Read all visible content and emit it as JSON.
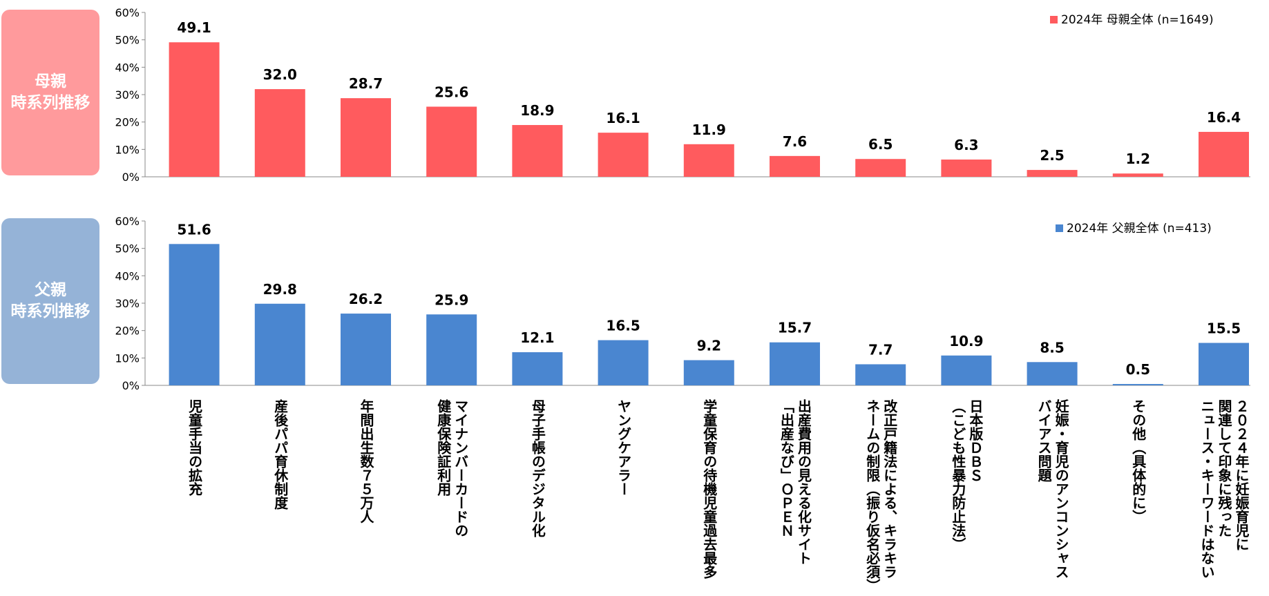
{
  "chart_data": [
    {
      "type": "bar",
      "panel_label": [
        "母親",
        "時系列推移"
      ],
      "categories": [
        "児童手当の拡充",
        "産後パパ育休制度",
        "年間出生数７５万人",
        "マイナンバーカードの\n健康保険証利用",
        "母子手帳のデジタル化",
        "ヤングケアラー",
        "学童保育の待機児童過去最多",
        "出産費用の見える化サイト\n「出産なび」ＯＰＥＮ",
        "改正戸籍法による、キラキラ\nネームの制限（振り仮名必須）",
        "日本版ＤＢＳ\n（こども性暴力防止法）",
        "妊娠・育児のアンコンシャス\nバイアス問題",
        "その他（具体的に）",
        "２０２４年に妊娠育児に\n関連して印象に残った\nニュース・キーワードはない"
      ],
      "series": [
        {
          "name": "2024年  母親全体 (n=1649)",
          "color": "#ff5b5e",
          "values": [
            49.1,
            32.0,
            28.7,
            25.6,
            18.9,
            16.1,
            11.9,
            7.6,
            6.5,
            6.3,
            2.5,
            1.2,
            16.4
          ],
          "labels": [
            "49.1",
            "32.0",
            "28.7",
            "25.6",
            "18.9",
            "16.1",
            "11.9",
            "7.6",
            "6.5",
            "6.3",
            "2.5",
            "1.2",
            "16.4"
          ]
        }
      ],
      "ylim": [
        0,
        60
      ],
      "yticks": [
        "0%",
        "10%",
        "20%",
        "30%",
        "40%",
        "50%",
        "60%"
      ],
      "legend_position": "top-right",
      "grid": false
    },
    {
      "type": "bar",
      "panel_label": [
        "父親",
        "時系列推移"
      ],
      "categories": [
        "児童手当の拡充",
        "産後パパ育休制度",
        "年間出生数７５万人",
        "マイナンバーカードの\n健康保険証利用",
        "母子手帳のデジタル化",
        "ヤングケアラー",
        "学童保育の待機児童過去最多",
        "出産費用の見える化サイト\n「出産なび」ＯＰＥＮ",
        "改正戸籍法による、キラキラ\nネームの制限（振り仮名必須）",
        "日本版ＤＢＳ\n（こども性暴力防止法）",
        "妊娠・育児のアンコンシャス\nバイアス問題",
        "その他（具体的に）",
        "２０２４年に妊娠育児に\n関連して印象に残った\nニュース・キーワードはない"
      ],
      "series": [
        {
          "name": "2024年  父親全体 (n=413)",
          "color": "#4a86d0",
          "values": [
            51.6,
            29.8,
            26.2,
            25.9,
            12.1,
            16.5,
            9.2,
            15.7,
            7.7,
            10.9,
            8.5,
            0.5,
            15.5
          ],
          "labels": [
            "51.6",
            "29.8",
            "26.2",
            "25.9",
            "12.1",
            "16.5",
            "9.2",
            "15.7",
            "7.7",
            "10.9",
            "8.5",
            "0.5",
            "15.5"
          ]
        }
      ],
      "ylim": [
        0,
        60
      ],
      "yticks": [
        "0%",
        "10%",
        "20%",
        "30%",
        "40%",
        "50%",
        "60%"
      ],
      "legend_position": "top-right",
      "grid": false
    }
  ]
}
